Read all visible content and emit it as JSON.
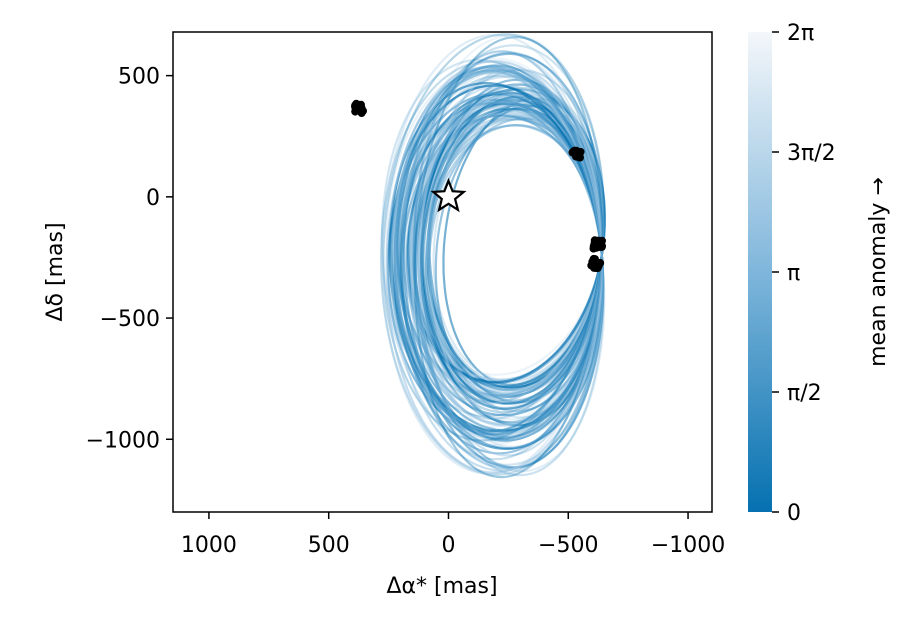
{
  "chart_data": {
    "type": "line",
    "xlabel": "Δα* [mas]",
    "ylabel": "Δδ [mas]",
    "xlim": [
      1150,
      -1100
    ],
    "ylim": [
      -1300,
      680
    ],
    "x_reversed": true,
    "x_ticks": [
      {
        "value": 1000,
        "label": "1000"
      },
      {
        "value": 500,
        "label": "500"
      },
      {
        "value": 0,
        "label": "0"
      },
      {
        "value": -500,
        "label": "−500"
      },
      {
        "value": -1000,
        "label": "−1000"
      }
    ],
    "y_ticks": [
      {
        "value": 500,
        "label": "500"
      },
      {
        "value": 0,
        "label": "0"
      },
      {
        "value": -500,
        "label": "−500"
      },
      {
        "value": -1000,
        "label": "−1000"
      }
    ],
    "grid": false,
    "star_marker": {
      "x": 0,
      "y": 0,
      "symbol": "star"
    },
    "observation_clusters": [
      {
        "x": 375,
        "y": 365
      },
      {
        "x": -535,
        "y": 180
      },
      {
        "x": -625,
        "y": -195
      },
      {
        "x": -615,
        "y": -275
      }
    ],
    "orbit_family": {
      "count": 90,
      "shared_point": {
        "x": -640,
        "y": -240
      },
      "colormap": "blue-to-white",
      "color_start": "#0571b0",
      "color_end": "#f4f7fa"
    },
    "colorbar": {
      "label": "mean anomaly →",
      "ticks": [
        {
          "value": 0,
          "label": "0"
        },
        {
          "value": 1.5708,
          "label": "π/2"
        },
        {
          "value": 3.1416,
          "label": "π"
        },
        {
          "value": 4.7124,
          "label": "3π/2"
        },
        {
          "value": 6.2832,
          "label": "2π"
        }
      ],
      "range": [
        0,
        6.2832
      ]
    }
  }
}
